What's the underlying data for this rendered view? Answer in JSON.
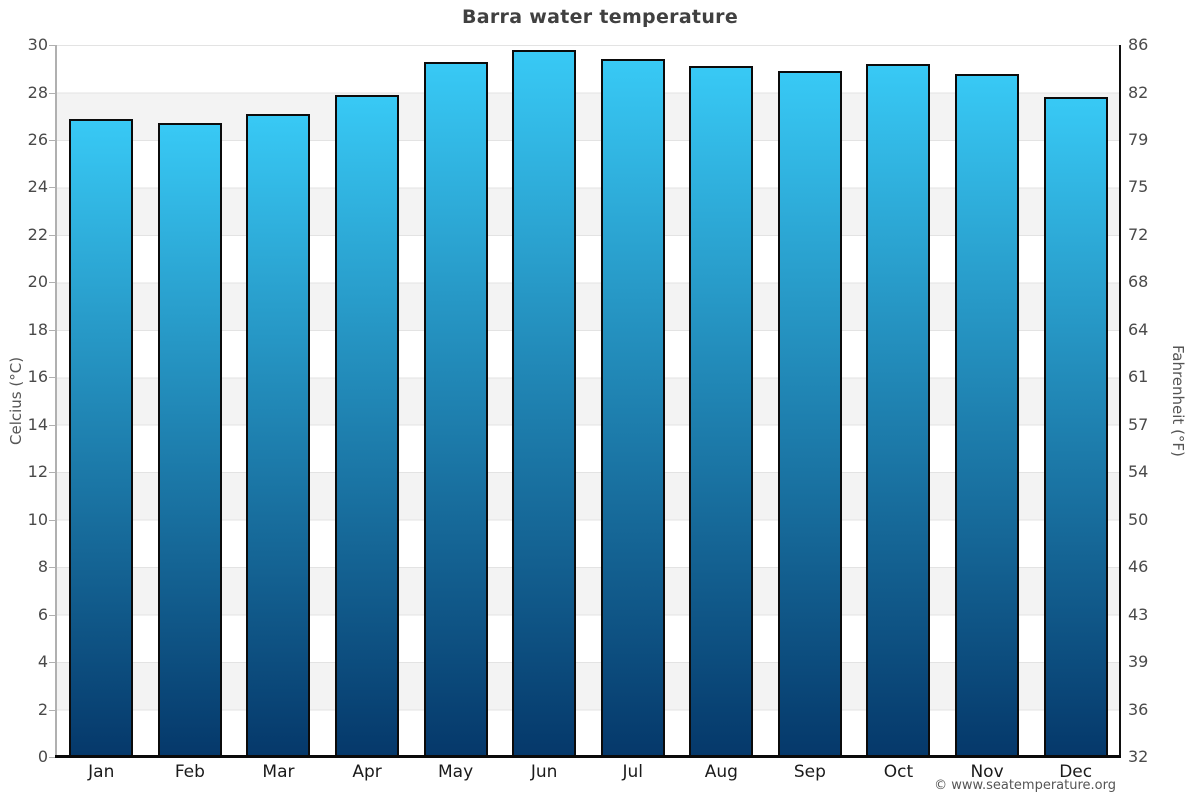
{
  "title": "Barra water temperature",
  "copyright": "© www.seatemperature.org",
  "chart_data": {
    "type": "bar",
    "title": "Barra water temperature",
    "categories": [
      "Jan",
      "Feb",
      "Mar",
      "Apr",
      "May",
      "Jun",
      "Jul",
      "Aug",
      "Sep",
      "Oct",
      "Nov",
      "Dec"
    ],
    "series": [
      {
        "name": "Water temperature (°C)",
        "values": [
          26.9,
          26.7,
          27.1,
          27.9,
          29.3,
          29.8,
          29.4,
          29.1,
          28.9,
          29.2,
          28.8,
          27.8
        ]
      }
    ],
    "values_fahrenheit": [
      80.4,
      80.1,
      80.8,
      82.2,
      84.7,
      85.6,
      84.9,
      84.4,
      84.0,
      84.6,
      83.8,
      82.0
    ],
    "xlabel": "",
    "ylabel_left": "Celcius (°C)",
    "ylabel_right": "Fahrenheit (°F)",
    "ylim": [
      0,
      30
    ],
    "y_ticks_celsius": [
      30,
      28,
      26,
      24,
      22,
      20,
      18,
      16,
      14,
      12,
      10,
      8,
      6,
      4,
      2,
      0
    ],
    "y_ticks_fahrenheit": [
      86,
      82,
      79,
      75,
      72,
      68,
      64,
      61,
      57,
      54,
      50,
      46,
      43,
      39,
      36,
      32
    ],
    "grid": "alternating white/gray horizontal bands every 2°C with thin gridlines",
    "legend": "none"
  },
  "colors": {
    "bar_gradient_top": "#38c9f5",
    "bar_gradient_bottom": "#05386a",
    "bar_border": "#0b0b0b",
    "band_gray": "#f3f3f3",
    "gridline": "#e3e3e3",
    "left_axis_line": "#b0b0b0",
    "right_axis_line": "#111111",
    "bottom_axis_line": "#0a0a0a",
    "title_color": "#404040",
    "tick_label_color": "#4a4a4a",
    "axis_title_color": "#555555",
    "copyright_color": "#555555"
  }
}
